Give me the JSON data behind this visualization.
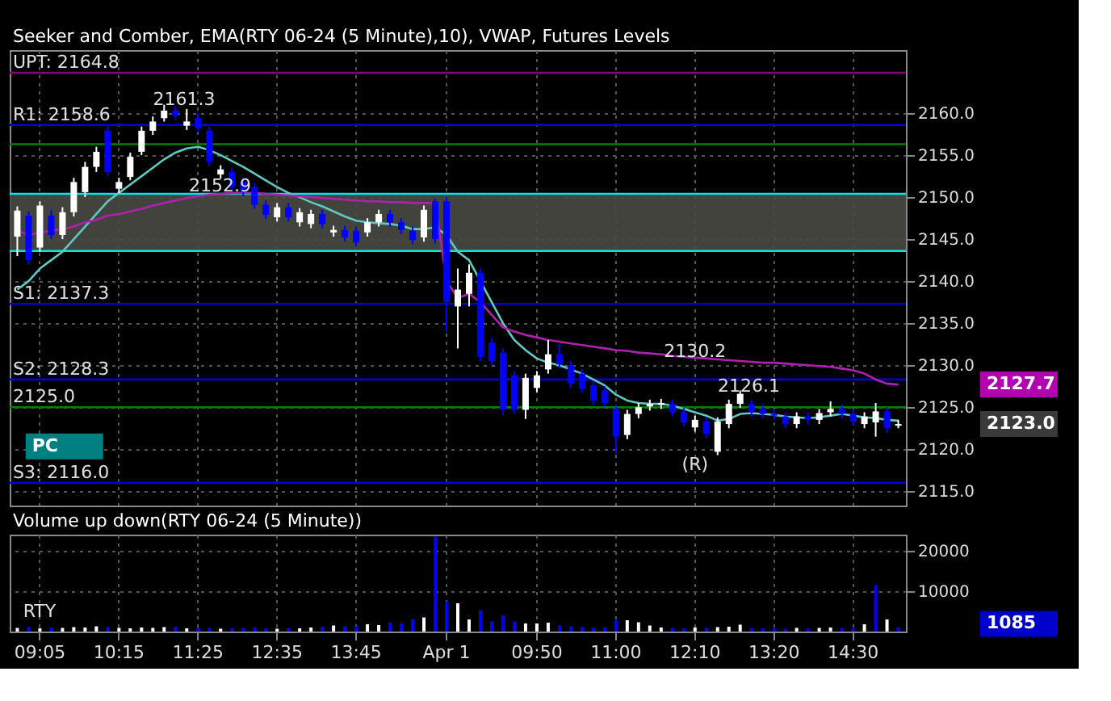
{
  "chart_data": [
    {
      "type": "candlestick",
      "title": "Seeker and Comber, EMA(RTY 06-24 (5 Minute),10), VWAP, Futures Levels",
      "categories": [
        null,
        null,
        "09:05",
        null,
        null,
        null,
        null,
        null,
        null,
        "10:15",
        null,
        null,
        null,
        null,
        null,
        null,
        "11:25",
        null,
        null,
        null,
        null,
        null,
        null,
        "12:35",
        null,
        null,
        null,
        null,
        null,
        null,
        "13:45",
        null,
        null,
        null,
        null,
        null,
        null,
        null,
        "Apr 1",
        null,
        null,
        null,
        null,
        null,
        null,
        null,
        "09:50",
        null,
        null,
        null,
        null,
        null,
        null,
        "11:00",
        null,
        null,
        null,
        null,
        null,
        null,
        "12:10",
        null,
        null,
        null,
        null,
        null,
        null,
        "13:20",
        null,
        null,
        null,
        null,
        null,
        null,
        "14:30",
        null,
        null,
        null,
        null
      ],
      "ohlc": [
        [
          2145.3,
          2148.9,
          2143,
          2148.4
        ],
        [
          2147.8,
          2148.3,
          2142,
          2142.5
        ],
        [
          2144,
          2149.5,
          2143.5,
          2149
        ],
        [
          2147.8,
          2148.5,
          2145,
          2145.5
        ],
        [
          2145.5,
          2148.8,
          2145,
          2148.2
        ],
        [
          2148.2,
          2152.3,
          2147.7,
          2151.8
        ],
        [
          2150.6,
          2154.2,
          2150,
          2153.6
        ],
        [
          2153.6,
          2156,
          2153,
          2155.4
        ],
        [
          2157.9,
          2158.5,
          2152.5,
          2153
        ],
        [
          2151,
          2152.3,
          2150.5,
          2151.8
        ],
        [
          2152.4,
          2155.3,
          2152,
          2154.8
        ],
        [
          2155.4,
          2158.4,
          2155,
          2157.9
        ],
        [
          2157.9,
          2159.6,
          2157.4,
          2159
        ],
        [
          2159.4,
          2161,
          2159,
          2160.3
        ],
        [
          2160.3,
          2160.8,
          2159.2,
          2159.7
        ],
        [
          2158.5,
          2160.5,
          2158,
          2159
        ],
        [
          2159.4,
          2160,
          2157.7,
          2158.2
        ],
        [
          2157.9,
          2158.4,
          2153.7,
          2154.2
        ],
        [
          2152.7,
          2153.8,
          2152.2,
          2153.3
        ],
        [
          2153,
          2153.5,
          2150.7,
          2151.2
        ],
        [
          2151.8,
          2152.3,
          2150.1,
          2150.6
        ],
        [
          2151.2,
          2151.7,
          2148.6,
          2149.1
        ],
        [
          2149.1,
          2149.6,
          2147.4,
          2147.9
        ],
        [
          2147.6,
          2149.3,
          2147.1,
          2148.8
        ],
        [
          2148.8,
          2149.3,
          2147.1,
          2147.6
        ],
        [
          2147,
          2148.7,
          2146.5,
          2148.2
        ],
        [
          2146.8,
          2148.5,
          2146.3,
          2148
        ],
        [
          2148,
          2148.5,
          2146.3,
          2146.8
        ],
        [
          2145.8,
          2146.6,
          2145.3,
          2146.1
        ],
        [
          2146.1,
          2146.6,
          2144.7,
          2145.2
        ],
        [
          2146,
          2146.5,
          2144.1,
          2144.6
        ],
        [
          2145.8,
          2147.5,
          2145.3,
          2147
        ],
        [
          2147,
          2148.5,
          2146.5,
          2148
        ],
        [
          2148,
          2148.5,
          2146.5,
          2147
        ],
        [
          2147,
          2147.5,
          2145.6,
          2146.1
        ],
        [
          2146,
          2146.5,
          2144.4,
          2144.9
        ],
        [
          2145.2,
          2149,
          2144.7,
          2148.5
        ],
        [
          2149.5,
          2149.8,
          2144.5,
          2145
        ],
        [
          2149.5,
          2150,
          2134,
          2137.5
        ],
        [
          2137,
          2141.5,
          2132,
          2139
        ],
        [
          2138.5,
          2142,
          2137,
          2141
        ],
        [
          2141,
          2141.5,
          2130.5,
          2131
        ],
        [
          2132.7,
          2133.2,
          2130,
          2130.5
        ],
        [
          2131.5,
          2132,
          2124,
          2124.7
        ],
        [
          2128.8,
          2129.3,
          2124.2,
          2124.7
        ],
        [
          2124.7,
          2129,
          2123.6,
          2128.5
        ],
        [
          2127.3,
          2129.3,
          2126.8,
          2128.8
        ],
        [
          2129.5,
          2133,
          2129,
          2131.3
        ],
        [
          2131.3,
          2132.5,
          2129.6,
          2130.1
        ],
        [
          2130,
          2130.5,
          2127.3,
          2127.8
        ],
        [
          2129,
          2129.5,
          2126.7,
          2127.2
        ],
        [
          2127.6,
          2128.1,
          2125.3,
          2125.8
        ],
        [
          2127,
          2127.5,
          2125,
          2125.5
        ],
        [
          2124.8,
          2125.3,
          2119.5,
          2121.5
        ],
        [
          2121.7,
          2124.7,
          2121.2,
          2124.2
        ],
        [
          2124.2,
          2125.5,
          2123.7,
          2125
        ],
        [
          2125.1,
          2125.9,
          2124.6,
          2125.4
        ],
        [
          2125.3,
          2126,
          2124.8,
          2125.5
        ],
        [
          2125.4,
          2125.9,
          2123.9,
          2124.4
        ],
        [
          2124.4,
          2124.9,
          2122.7,
          2123.2
        ],
        [
          2122.6,
          2124,
          2122.1,
          2123.5
        ],
        [
          2123.3,
          2123.8,
          2121.3,
          2121.8
        ],
        [
          2119.7,
          2123.8,
          2119.3,
          2123.3
        ],
        [
          2123,
          2125.9,
          2122.5,
          2125.4
        ],
        [
          2125.4,
          2127,
          2124.9,
          2126.6
        ],
        [
          2125.4,
          2125.9,
          2123.9,
          2124.4
        ],
        [
          2124.8,
          2125.3,
          2123.7,
          2124.2
        ],
        [
          2124.2,
          2124.7,
          2123.5,
          2124
        ],
        [
          2123.9,
          2124.4,
          2122.5,
          2123
        ],
        [
          2123,
          2124.4,
          2122.5,
          2123.9
        ],
        [
          2123.9,
          2124.4,
          2123,
          2123.5
        ],
        [
          2123.5,
          2124.8,
          2123,
          2124.3
        ],
        [
          2124.4,
          2125.7,
          2123.9,
          2124.8
        ],
        [
          2124.8,
          2125.3,
          2123.7,
          2124.2
        ],
        [
          2124.2,
          2124.7,
          2122.8,
          2123.3
        ],
        [
          2123,
          2124.4,
          2122.5,
          2123.9
        ],
        [
          2123.2,
          2125.5,
          2121.5,
          2124.5
        ],
        [
          2124.5,
          2125,
          2122,
          2122.5
        ],
        [
          2122.8,
          2123.5,
          2122.5,
          2123
        ]
      ],
      "colors": [
        "#ffffff",
        "#0000ff",
        "#ffffff",
        "#0000ff",
        "#ffffff",
        "#ffffff",
        "#ffffff",
        "#ffffff",
        "#0000ff",
        "#ffffff",
        "#ffffff",
        "#ffffff",
        "#ffffff",
        "#ffffff",
        "#0000ff",
        "#ffffff",
        "#0000ff",
        "#0000ff",
        "#ffffff",
        "#0000ff",
        "#0000ff",
        "#0000ff",
        "#0000ff",
        "#ffffff",
        "#0000ff",
        "#ffffff",
        "#ffffff",
        "#0000ff",
        "#ffffff",
        "#0000ff",
        "#0000ff",
        "#ffffff",
        "#ffffff",
        "#0000ff",
        "#0000ff",
        "#0000ff",
        "#ffffff",
        "#0000ff",
        "#0000ff",
        "#ffffff",
        "#ffffff",
        "#0000ff",
        "#0000ff",
        "#0000ff",
        "#0000ff",
        "#ffffff",
        "#ffffff",
        "#ffffff",
        "#0000ff",
        "#0000ff",
        "#0000ff",
        "#0000ff",
        "#0000ff",
        "#0000ff",
        "#ffffff",
        "#ffffff",
        "#ffffff",
        "#ffffff",
        "#0000ff",
        "#0000ff",
        "#ffffff",
        "#0000ff",
        "#ffffff",
        "#ffffff",
        "#ffffff",
        "#0000ff",
        "#0000ff",
        "#0000ff",
        "#0000ff",
        "#ffffff",
        "#0000ff",
        "#ffffff",
        "#ffffff",
        "#0000ff",
        "#0000ff",
        "#ffffff",
        "#ffffff",
        "#0000ff",
        "#ffffff"
      ],
      "series": [
        {
          "type": "line",
          "color": "#5fc8c0",
          "values": [
            2139,
            2140,
            2141.5,
            2142.5,
            2143.5,
            2145,
            2146.5,
            2148,
            2149.5,
            2150.5,
            2151.5,
            2152.5,
            2153.5,
            2154.5,
            2155.3,
            2155.8,
            2156,
            2155.6,
            2155,
            2154.3,
            2153.6,
            2152.8,
            2152,
            2151.2,
            2150.5,
            2150,
            2149.4,
            2148.9,
            2148.3,
            2147.7,
            2147.2,
            2147,
            2146.9,
            2146.8,
            2146.6,
            2146.2,
            2146.2,
            2146.4,
            2145.5,
            2143.5,
            2142.5,
            2140,
            2137.5,
            2135,
            2133,
            2131.8,
            2130.8,
            2130.3,
            2130,
            2129.5,
            2129,
            2128.3,
            2127.6,
            2126.5,
            2125.8,
            2125.5,
            2125.4,
            2125.4,
            2125.2,
            2124.8,
            2124.4,
            2124,
            2123.4,
            2123.6,
            2124.2,
            2124.3,
            2124.2,
            2124.1,
            2123.9,
            2123.8,
            2123.7,
            2123.8,
            2124,
            2124.2,
            2124,
            2123.8,
            2123.7,
            2123.5,
            2123.4
          ]
        },
        {
          "type": "line",
          "color": "#b020b0",
          "values": [
            2146,
            2145.5,
            2145.8,
            2146,
            2146.2,
            2146.5,
            2147,
            2147.3,
            2147.8,
            2148,
            2148.3,
            2148.6,
            2149,
            2149.3,
            2149.6,
            2149.9,
            2150.1,
            2150.3,
            2150.4,
            2150.5,
            2150.5,
            2150.5,
            2150.4,
            2150.3,
            2150.2,
            2150.1,
            2150,
            2149.9,
            2149.8,
            2149.7,
            2149.6,
            2149.5,
            2149.5,
            2149.4,
            2149.4,
            2149.3,
            2149.3,
            2149.3,
            2140,
            2138,
            2138.5,
            2137.5,
            2136,
            2134.5,
            2134,
            2133.6,
            2133.3,
            2133,
            2132.8,
            2132.6,
            2132.4,
            2132.2,
            2132,
            2131.8,
            2131.7,
            2131.5,
            2131.4,
            2131.3,
            2131.1,
            2131,
            2130.9,
            2130.8,
            2130.7,
            2130.6,
            2130.5,
            2130.4,
            2130.3,
            2130.3,
            2130.2,
            2130.1,
            2130,
            2129.9,
            2129.8,
            2129.6,
            2129.4,
            2129,
            2128.3,
            2127.8,
            2127.7
          ]
        }
      ],
      "ylim": [
        2113.3,
        2167.5
      ],
      "yticks": [
        {
          "value": 2115,
          "label": "2115.0"
        },
        {
          "value": 2120,
          "label": "2120.0"
        },
        {
          "value": 2125,
          "label": "2125.0"
        },
        {
          "value": 2130,
          "label": "2130.0"
        },
        {
          "value": 2135,
          "label": "2135.0"
        },
        {
          "value": 2140,
          "label": "2140.0"
        },
        {
          "value": 2145,
          "label": "2145.0"
        },
        {
          "value": 2150,
          "label": "2150.0"
        },
        {
          "value": 2155,
          "label": "2155.0"
        },
        {
          "value": 2160,
          "label": "2160.0"
        }
      ],
      "tick_labels": "y",
      "grid": true,
      "bands": [
        {
          "axis": "y",
          "from": 2143.6,
          "to": 2150.4,
          "color": "#4a4a44"
        }
      ],
      "ref_lines": [
        {
          "axis": "y",
          "value": 2164.8,
          "label": "UPT: 2164.8",
          "color": "#800080"
        },
        {
          "axis": "y",
          "value": 2158.6,
          "label": "R1: 2158.6",
          "color": "#0000cc"
        },
        {
          "axis": "y",
          "value": 2156.3,
          "color": "#008000"
        },
        {
          "axis": "y",
          "value": 2150.4,
          "color": "#00e5e5"
        },
        {
          "axis": "y",
          "value": 2143.6,
          "color": "#00e5e5"
        },
        {
          "axis": "y",
          "value": 2137.3,
          "label": "S1: 2137.3",
          "color": "#0000cc"
        },
        {
          "axis": "y",
          "value": 2128.3,
          "label": "S2: 2128.3",
          "color": "#0000cc"
        },
        {
          "axis": "y",
          "value": 2125.0,
          "label": "2125.0",
          "color": "#008000"
        },
        {
          "axis": "y",
          "value": 2116.0,
          "label": "S3: 2116.0",
          "color": "#0000cc"
        }
      ],
      "annotations": [
        "2161.3",
        "2152.9",
        {
          "text": "2130.2",
          "x": "12:10",
          "y": 2130.2
        },
        "2126.1",
        {
          "text": "(R)",
          "x": "12:10",
          "y": 2116.8
        },
        "2127.7",
        "2123.0",
        "PC"
      ]
    },
    {
      "type": "bar",
      "title": "Volume up down(RTY 06-24 (5 Minute))",
      "categories": [
        null,
        null,
        "09:05",
        null,
        null,
        null,
        null,
        null,
        null,
        "10:15",
        null,
        null,
        null,
        null,
        null,
        null,
        "11:25",
        null,
        null,
        null,
        null,
        null,
        null,
        "12:35",
        null,
        null,
        null,
        null,
        null,
        null,
        "13:45",
        null,
        null,
        null,
        null,
        null,
        null,
        null,
        "Apr 1",
        null,
        null,
        null,
        null,
        null,
        null,
        null,
        "09:50",
        null,
        null,
        null,
        null,
        null,
        null,
        "11:00",
        null,
        null,
        null,
        null,
        null,
        null,
        "12:10",
        null,
        null,
        null,
        null,
        null,
        null,
        "13:20",
        null,
        null,
        null,
        null,
        null,
        null,
        "14:30",
        null,
        null,
        null,
        null
      ],
      "values": [
        900,
        1200,
        800,
        1000,
        900,
        1100,
        1000,
        1300,
        1200,
        900,
        800,
        1000,
        900,
        1100,
        1200,
        800,
        1000,
        900,
        700,
        800,
        900,
        1000,
        800,
        700,
        900,
        800,
        1000,
        1200,
        1500,
        1300,
        1400,
        1800,
        1600,
        2200,
        2000,
        3000,
        3500,
        23500,
        7500,
        7000,
        3000,
        5200,
        2500,
        4000,
        2500,
        2000,
        2000,
        2200,
        1500,
        1300,
        1200,
        1000,
        1100,
        2800,
        2800,
        2300,
        1500,
        1000,
        900,
        800,
        1000,
        900,
        1100,
        1200,
        1700,
        900,
        800,
        900,
        700,
        900,
        800,
        900,
        1000,
        900,
        800,
        1800,
        11500,
        3000,
        1085
      ],
      "colors": [
        "#ffffff",
        "#0000ff",
        "#ffffff",
        "#0000ff",
        "#ffffff",
        "#ffffff",
        "#ffffff",
        "#ffffff",
        "#0000ff",
        "#ffffff",
        "#ffffff",
        "#ffffff",
        "#ffffff",
        "#ffffff",
        "#0000ff",
        "#ffffff",
        "#0000ff",
        "#0000ff",
        "#ffffff",
        "#0000ff",
        "#0000ff",
        "#0000ff",
        "#0000ff",
        "#ffffff",
        "#0000ff",
        "#ffffff",
        "#ffffff",
        "#0000ff",
        "#ffffff",
        "#0000ff",
        "#0000ff",
        "#ffffff",
        "#ffffff",
        "#0000ff",
        "#0000ff",
        "#0000ff",
        "#ffffff",
        "#0000ff",
        "#0000ff",
        "#ffffff",
        "#ffffff",
        "#0000ff",
        "#0000ff",
        "#0000ff",
        "#0000ff",
        "#ffffff",
        "#ffffff",
        "#ffffff",
        "#0000ff",
        "#0000ff",
        "#0000ff",
        "#0000ff",
        "#0000ff",
        "#0000ff",
        "#ffffff",
        "#ffffff",
        "#ffffff",
        "#ffffff",
        "#0000ff",
        "#0000ff",
        "#ffffff",
        "#0000ff",
        "#ffffff",
        "#ffffff",
        "#ffffff",
        "#0000ff",
        "#0000ff",
        "#0000ff",
        "#0000ff",
        "#ffffff",
        "#0000ff",
        "#ffffff",
        "#ffffff",
        "#0000ff",
        "#0000ff",
        "#ffffff",
        "#0000ff",
        "#ffffff",
        "#0000ff"
      ],
      "ylim": [
        0,
        24000
      ],
      "yticks": [
        {
          "value": 10000,
          "label": "10000"
        },
        {
          "value": 20000,
          "label": "20000"
        }
      ],
      "grid": true,
      "annotations": [
        "1085",
        "RTY"
      ]
    }
  ]
}
